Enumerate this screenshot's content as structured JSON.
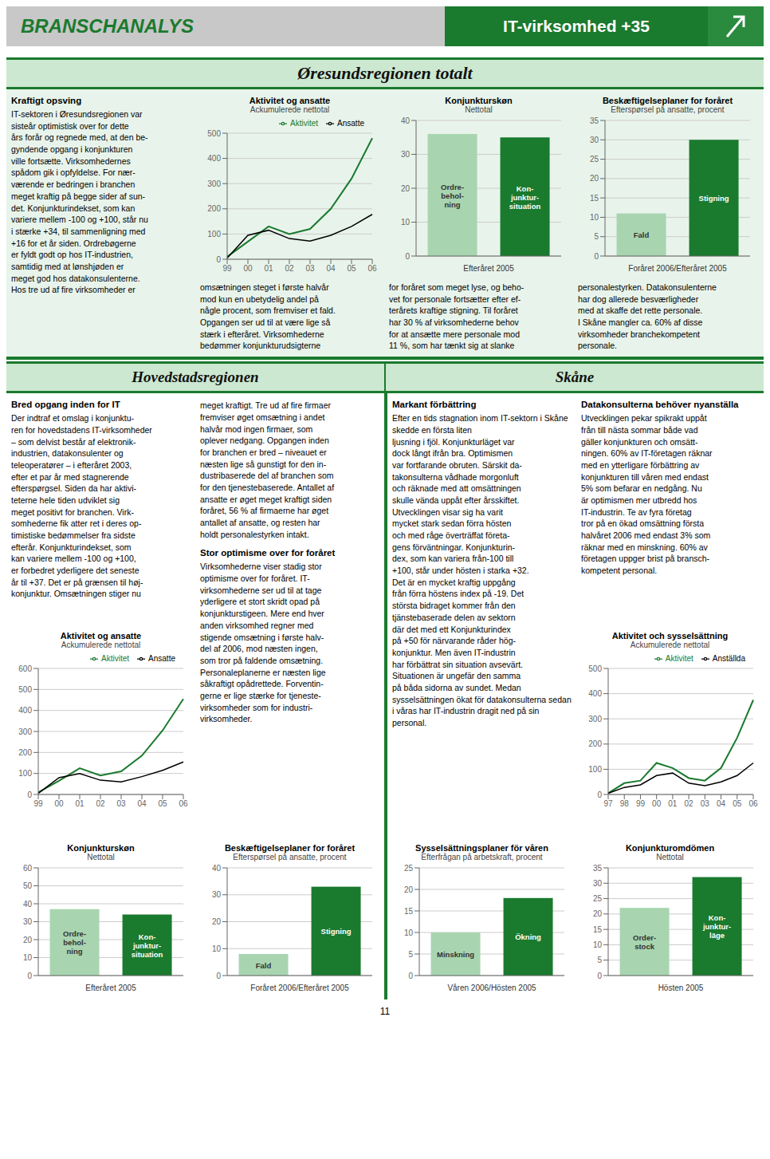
{
  "chart_data": [
    {
      "type": "line",
      "title": "Aktivitet og ansatte",
      "subtitle": "Ackumulerede nettotal",
      "categories": [
        "99",
        "00",
        "01",
        "02",
        "03",
        "04",
        "05",
        "06"
      ],
      "series": [
        {
          "name": "Aktivitet",
          "color": "#1a7a2e",
          "values": [
            10,
            70,
            130,
            100,
            120,
            200,
            320,
            480
          ]
        },
        {
          "name": "Ansatte",
          "color": "#000000",
          "values": [
            5,
            95,
            115,
            82,
            72,
            95,
            130,
            178
          ]
        }
      ],
      "ylim": [
        0,
        500
      ],
      "yticks": [
        0,
        100,
        200,
        300,
        400,
        500
      ],
      "grid": true,
      "legend": "top"
    },
    {
      "type": "bar",
      "title": "Konjunkturskøn",
      "subtitle": "Nettotal",
      "xlabel": "Efteråret 2005",
      "categories": [
        "Ordre-\nbehol-\nning",
        "Kon-\njunktur-\nsituation"
      ],
      "values": [
        36,
        35
      ],
      "colors": [
        "#a8d5b0",
        "#1a7a2e"
      ],
      "ylim": [
        0,
        40
      ],
      "yticks": [
        0,
        10,
        20,
        30,
        40
      ],
      "grid": true,
      "tick_labels": "y"
    },
    {
      "type": "bar",
      "title": "Beskæftigelseplaner for foråret",
      "subtitle": "Efterspørsel på ansatte, procent",
      "xlabel": "Foråret 2006/Efteråret 2005",
      "categories": [
        "Fald",
        "Stigning"
      ],
      "values": [
        11,
        30
      ],
      "colors": [
        "#a8d5b0",
        "#1a7a2e"
      ],
      "ylim": [
        0,
        35
      ],
      "yticks": [
        0,
        5,
        10,
        15,
        20,
        25,
        30,
        35
      ],
      "grid": true,
      "tick_labels": "y"
    },
    {
      "type": "line",
      "title": "Aktivitet og ansatte",
      "subtitle": "Ackumulerede nettotal",
      "categories": [
        "99",
        "00",
        "01",
        "02",
        "03",
        "04",
        "05",
        "06"
      ],
      "series": [
        {
          "name": "Aktivitet",
          "color": "#1a7a2e",
          "values": [
            10,
            65,
            125,
            90,
            110,
            185,
            305,
            455
          ]
        },
        {
          "name": "Ansatte",
          "color": "#000000",
          "values": [
            5,
            80,
            100,
            68,
            60,
            85,
            115,
            155
          ]
        }
      ],
      "ylim": [
        0,
        600
      ],
      "yticks": [
        0,
        100,
        200,
        300,
        400,
        500,
        600
      ],
      "grid": true,
      "legend": "top"
    },
    {
      "type": "bar",
      "title": "Konjunkturskøn",
      "subtitle": "Nettotal",
      "xlabel": "Efteråret 2005",
      "categories": [
        "Ordre-\nbehol-\nning",
        "Kon-\njunktur-\nsituation"
      ],
      "values": [
        37,
        34
      ],
      "colors": [
        "#a8d5b0",
        "#1a7a2e"
      ],
      "ylim": [
        0,
        60
      ],
      "yticks": [
        0,
        10,
        20,
        30,
        40,
        50,
        60
      ],
      "grid": true,
      "tick_labels": "y"
    },
    {
      "type": "bar",
      "title": "Beskæftigelseplaner for foråret",
      "subtitle": "Efterspørsel på ansatte, procent",
      "xlabel": "Foråret 2006/Efteråret 2005",
      "categories": [
        "Fald",
        "Stigning"
      ],
      "values": [
        8,
        33
      ],
      "colors": [
        "#a8d5b0",
        "#1a7a2e"
      ],
      "ylim": [
        0,
        40
      ],
      "yticks": [
        0,
        10,
        20,
        30,
        40
      ],
      "grid": true,
      "tick_labels": "y"
    },
    {
      "type": "bar",
      "title": "Sysselsättningsplaner för våren",
      "subtitle": "Efterfrågan på arbetskraft, procent",
      "xlabel": "Våren 2006/Hösten 2005",
      "categories": [
        "Minskning",
        "Ökning"
      ],
      "values": [
        10,
        18
      ],
      "colors": [
        "#a8d5b0",
        "#1a7a2e"
      ],
      "ylim": [
        0,
        25
      ],
      "yticks": [
        0,
        5,
        10,
        15,
        20,
        25
      ],
      "grid": true,
      "tick_labels": "y"
    },
    {
      "type": "line",
      "title": "Aktivitet och sysselsättning",
      "subtitle": "Ackumulerede nettotal",
      "categories": [
        "97",
        "98",
        "99",
        "00",
        "01",
        "02",
        "03",
        "04",
        "05",
        "06"
      ],
      "series": [
        {
          "name": "Aktivitet",
          "color": "#1a7a2e",
          "values": [
            5,
            45,
            55,
            125,
            105,
            65,
            55,
            105,
            225,
            375
          ]
        },
        {
          "name": "Anställda",
          "color": "#000000",
          "values": [
            5,
            28,
            38,
            75,
            85,
            45,
            35,
            50,
            75,
            125
          ]
        }
      ],
      "ylim": [
        0,
        500
      ],
      "yticks": [
        0,
        100,
        200,
        300,
        400,
        500
      ],
      "grid": true,
      "legend": "top"
    },
    {
      "type": "bar",
      "title": "Konjunkturomdömen",
      "subtitle": "Nettotal",
      "xlabel": "Hösten 2005",
      "categories": [
        "Order-\nstock",
        "Kon-\njunktur-\nläge"
      ],
      "values": [
        22,
        32
      ],
      "colors": [
        "#a8d5b0",
        "#1a7a2e"
      ],
      "ylim": [
        0,
        35
      ],
      "yticks": [
        0,
        5,
        10,
        15,
        20,
        25,
        30,
        35
      ],
      "grid": true,
      "tick_labels": "y"
    }
  ],
  "annotations": [
    "BRANSCHANALYS",
    "IT-virksomhed +35",
    "Øresundsregionen totalt",
    "Kraftigt opsving",
    "IT-sektoren i Øresundsregionen var\nsisteår optimistisk over for dette\nårs forår og regnede med, at den be-\ngyndende opgang i konjunkturen\nville fortsætte. Virksomhedernes\nspådom gik i opfyldelse. For nær-\nværende er bedringen i branchen\nmeget kraftig på begge sider af sun-\ndet. Konjunkturindekset, som kan\nvariere mellem -100 og +100, står nu\ni stærke +34, til sammenligning med\n+16 for et år siden. Ordrebøgerne\ner fyldt godt op hos IT-industrien,\nsamtidig med at lønshjøden er\nmeget god hos datakonsulenterne.\nHos tre ud af fire virksomheder er",
    "omsætningen steget i første halvår\nmod kun en ubetydelig andel på\nnågle procent, som fremviser et fald.\nOpgangen ser ud til at være lige så\nstærk i efteråret. Virksomhederne\nbedømmer konjunkturudsigterne",
    "for foråret som meget lyse, og beho-\nvet for personale fortsætter efter ef-\nterårets kraftige stigning. Til foråret\nhar 30 % af virksomhederne behov\nfor at ansætte mere personale mod\n11 %, som har tænkt sig at slanke",
    "personalestyrken. Datakonsulenterne\nhar dog allerede besværligheder\nmed at skaffe det rette personale.\nI Skåne mangler ca. 60% af disse\nvirksomheder branchekompetent\npersonale.",
    "Hovedstadsregionen",
    "Skåne",
    "Bred opgang inden for IT",
    "Der indtraf et omslag i konjunktu-\nren for hovedstadens IT-virksomheder\n– som delvist består af elektronik-\nindustrien, datakonsulenter og\nteleoperatører – i efteråret 2003,\nefter et par år med stagnerende\nefterspørgsel. Siden da har aktivi-\nteterne hele tiden udviklet sig\nmeget positivt for branchen. Virk-\nsomhederne fik atter ret i deres op-\ntimistiske bedømmelser fra sidste\nefterår. Konjunkturindekset, som\nkan variere mellem -100 og +100,\ner forbedret yderligere det seneste\når til +37. Det er på grænsen til høj-\nkonjunktur. Omsætningen stiger nu",
    "meget kraftigt. Tre ud af fire firmaer\nfremviser øget omsætning i andet\nhalvår mod ingen firmaer, som\noplever nedgang. Opgangen inden\nfor branchen er bred – niveauet er\nnæsten lige så gunstigt for den in-\ndustribaserede del af branchen som\nfor den tjenestebaserede. Antallet af\nansatte er øget meget kraftigt siden\nforåret, 56 % af firmaerne har øget\nantallet af ansatte, og resten har\nholdt personalestyrken intakt.",
    "Stor optimisme over for foråret",
    "Virksomhederne viser stadig stor\noptimisme over for foråret. IT-\nvirksomhederne ser ud til at tage\nyderligere et stort skridt opad på\nkonjunkturstigeen. Mere end hver\nanden virksomhed regner med\nstigende omsætning i første halv-\ndel af 2006, mod næsten ingen,\nsom tror på faldende omsætning.\nPersonaleplanerne er næsten lige\nsåkraftigt opådrettede. Forventin-\ngerne er lige stærke for tjeneste-\nvirksomheder som for industri-\nvirksomheder.",
    "Markant förbättring",
    "Efter en tids stagnation inom IT-sektorn i Skåne skedde en första liten\nljusning i fjöl. Konjunkturläget var\ndock långt ifrån bra. Optimismen\nvar fortfarande obruten. Särskit da-\ntakonsulterna vådhade morgonluft\noch räknade med att omsättningen\nskulle vända uppåt efter årsskiftet.\nUtvecklingen visar sig ha varit\nmycket stark sedan förra hösten\noch med råge överträffat företa-\ngens förväntningar. Konjunkturin-\ndex, som kan variera från-100 till\n+100, står under hösten i starka +32.\nDet är en mycket kraftig uppgång\nfrån förra höstens index på -19. Det\nstörsta bidraget kommer från den\ntjänstebaserade delen av sektorn\ndär det med ett Konjunkturindex\npå +50 för närvarande råder hög-\nkonjunktur. Men även IT-industrin\nhar förbättrat sin situation avsevärt.\nSituationen är ungefär den samma\npå båda sidorna av sundet. Medan\nsysselsättningen ökat för datakonsulterna sedan i våras har IT-industrin dragit ned på sin personal.",
    "Datakonsulterna behöver nyanställa",
    "Utvecklingen pekar spikrakt uppåt\nfrån till nästa sommar både vad\ngäller konjunkturen och omsätt-\nningen. 60% av IT-företagen räknar\nmed en ytterligare förbättring av\nkonjunkturen till våren med endast\n5% som befarar en nedgång. Nu\när optimismen mer utbredd hos\nIT-industrin. Te av fyra företag\ntror på en ökad omsättning första\nhalvåret 2006 med endast 3% som\nräknar med en minskning. 60% av\nföretagen uppger brist på bransch-\nkompetent personal.",
    "11"
  ]
}
